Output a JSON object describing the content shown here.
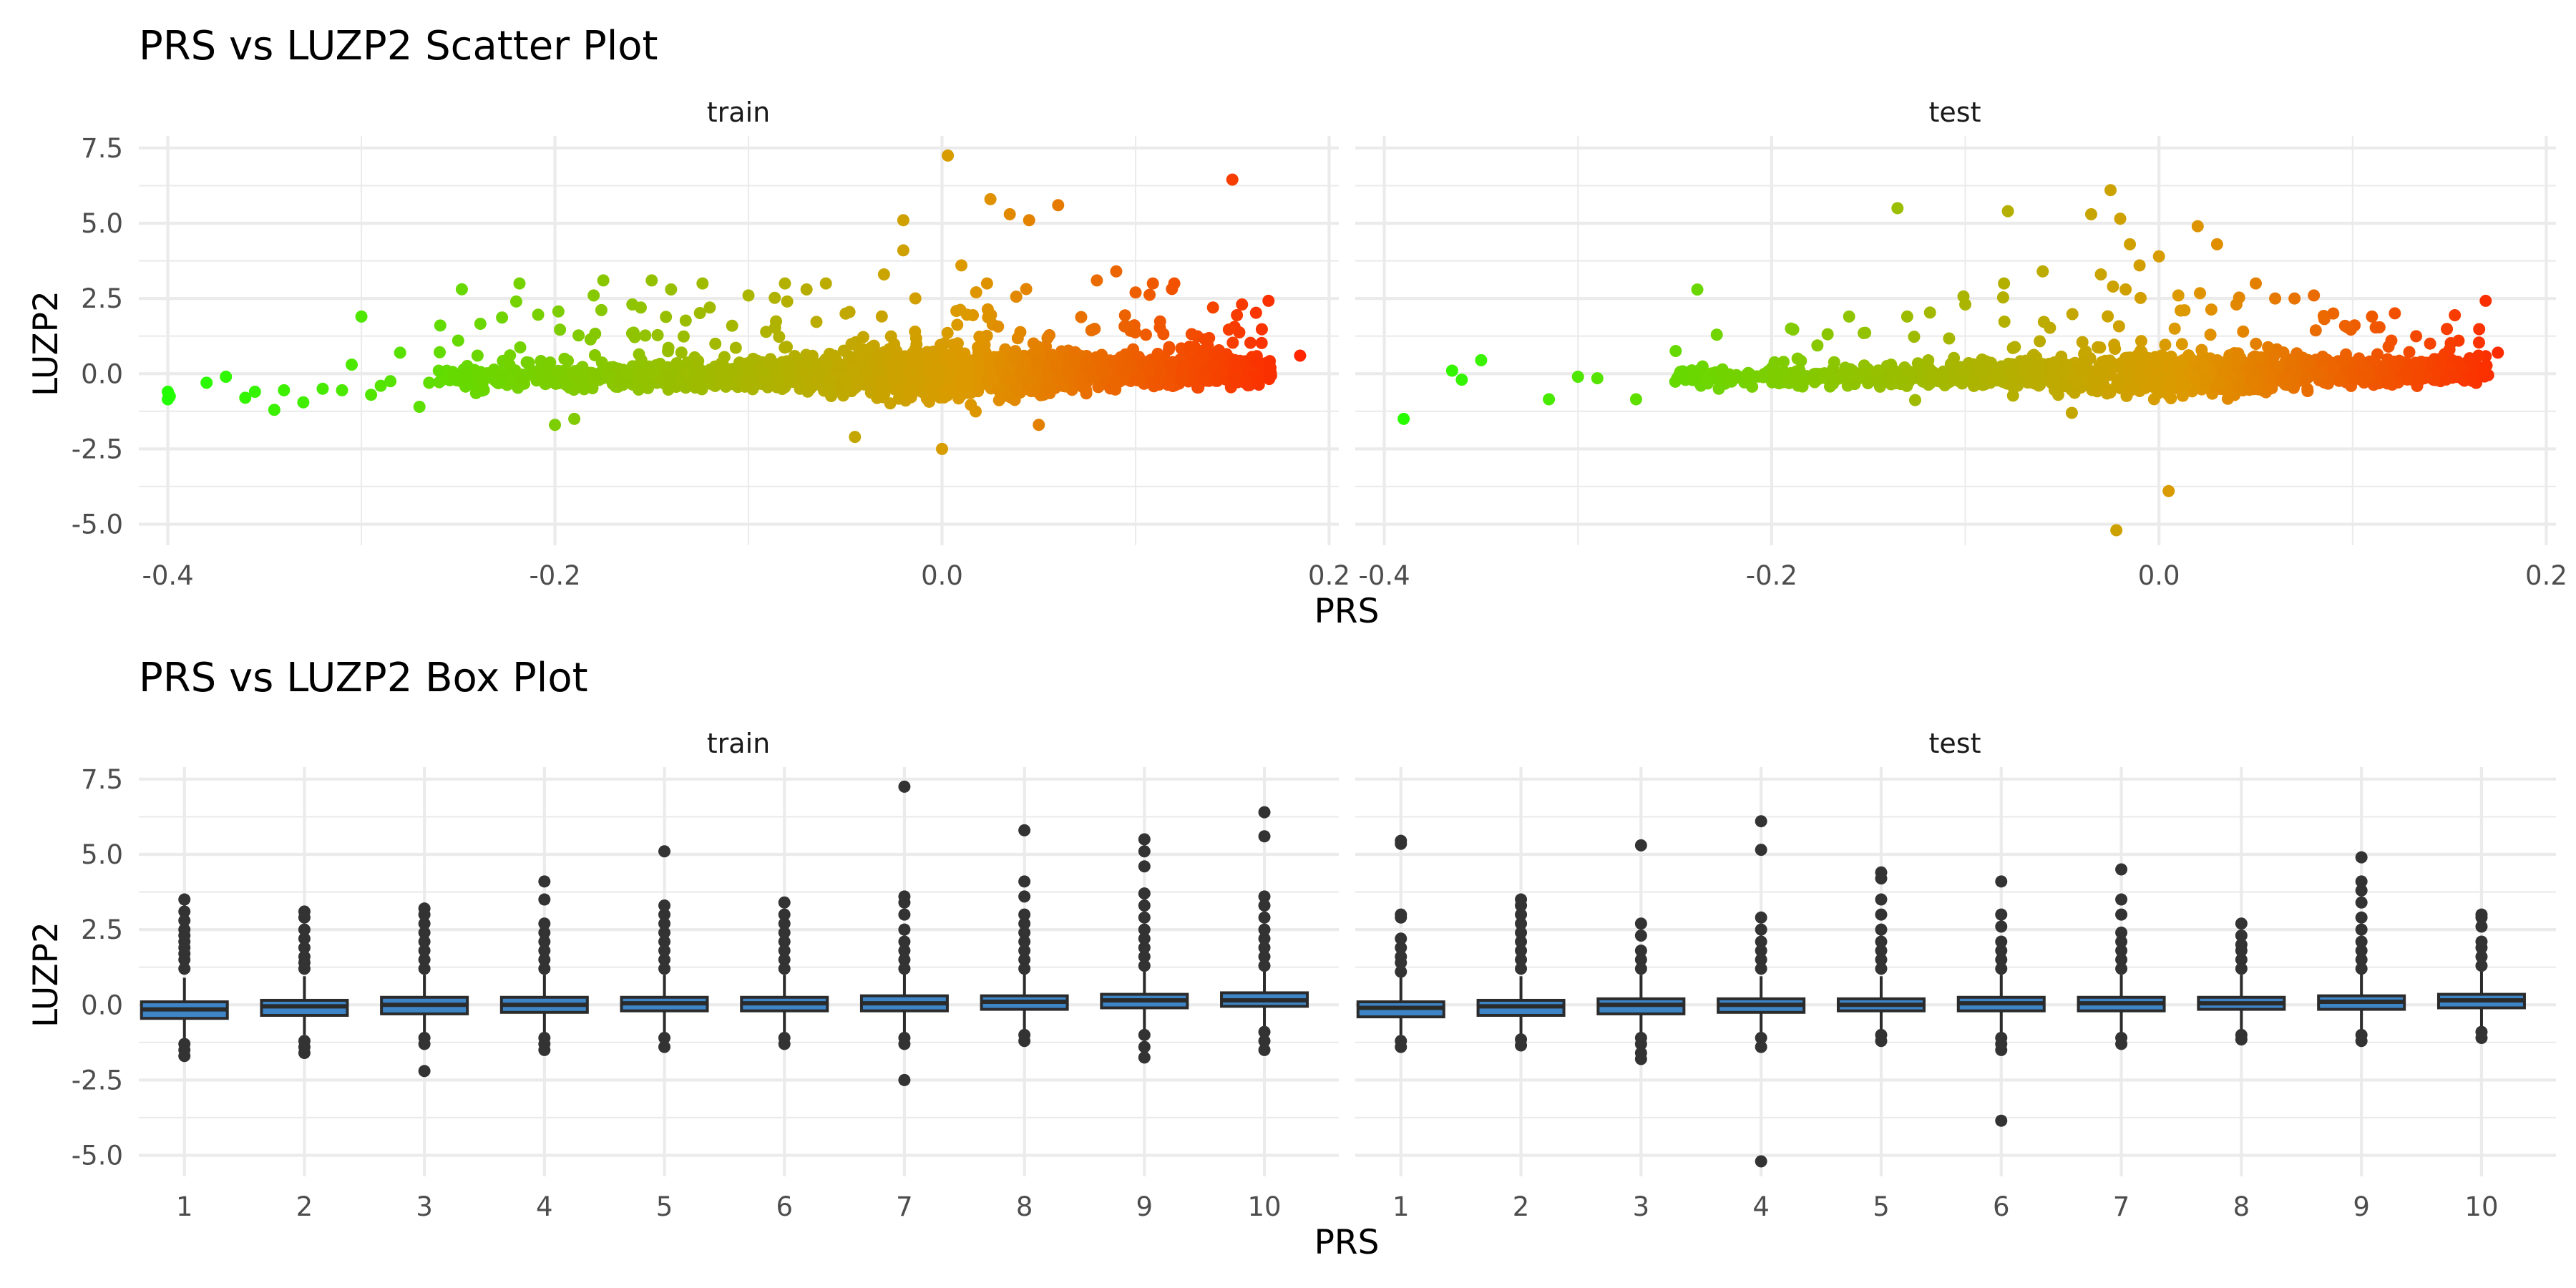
{
  "colors": {
    "low": "#22ff00",
    "mid": "#dd9900",
    "high": "#ff2200",
    "box_fill": "#3d85c6",
    "box_line": "#2b2b2b",
    "outlier": "#333333"
  },
  "chart_data": [
    {
      "type": "scatter",
      "title": "PRS vs LUZP2 Scatter Plot",
      "xlabel": "PRS",
      "ylabel": "LUZP2",
      "xlim": [
        -0.415,
        0.205
      ],
      "ylim": [
        -5.7,
        7.9
      ],
      "xticks": [
        -0.4,
        -0.2,
        0.0,
        0.2
      ],
      "xtick_labels": [
        "-0.4",
        "-0.2",
        "0.0",
        "0.2"
      ],
      "yticks": [
        -5,
        -2.5,
        0,
        2.5,
        5,
        7.5
      ],
      "ytick_labels": [
        "-5.0",
        "-2.5",
        "0.0",
        "2.5",
        "5.0",
        "7.5"
      ],
      "color_scale": "gradient by PRS (green to orange to red)",
      "grid": true,
      "legend": "none",
      "panels": [
        {
          "label": "train",
          "bulk": {
            "x_range": [
              -0.26,
              0.17
            ],
            "y_spread": 0.55,
            "approx_points": 2600
          },
          "points": [
            [
              -0.4,
              -0.6
            ],
            [
              -0.4,
              -0.85
            ],
            [
              -0.399,
              -0.75
            ],
            [
              -0.38,
              -0.3
            ],
            [
              -0.37,
              -0.1
            ],
            [
              -0.36,
              -0.8
            ],
            [
              -0.355,
              -0.6
            ],
            [
              -0.345,
              -1.2
            ],
            [
              -0.34,
              -0.55
            ],
            [
              -0.33,
              -0.95
            ],
            [
              -0.32,
              -0.5
            ],
            [
              -0.31,
              -0.55
            ],
            [
              -0.305,
              0.3
            ],
            [
              -0.3,
              1.9
            ],
            [
              -0.295,
              -0.7
            ],
            [
              -0.29,
              -0.4
            ],
            [
              -0.285,
              -0.25
            ],
            [
              -0.28,
              0.7
            ],
            [
              -0.27,
              -1.1
            ],
            [
              -0.265,
              -0.3
            ],
            [
              -0.26,
              0.1
            ],
            [
              -0.25,
              1.1
            ],
            [
              -0.24,
              0.6
            ],
            [
              -0.22,
              2.4
            ],
            [
              -0.2,
              -1.7
            ],
            [
              -0.19,
              -1.5
            ],
            [
              -0.18,
              2.6
            ],
            [
              -0.175,
              3.1
            ],
            [
              -0.16,
              2.3
            ],
            [
              -0.15,
              3.1
            ],
            [
              -0.14,
              2.8
            ],
            [
              -0.12,
              2.2
            ],
            [
              -0.1,
              2.6
            ],
            [
              -0.08,
              2.4
            ],
            [
              -0.07,
              2.8
            ],
            [
              -0.06,
              3.0
            ],
            [
              -0.045,
              -2.1
            ],
            [
              -0.03,
              3.3
            ],
            [
              -0.02,
              4.1
            ],
            [
              -0.02,
              5.1
            ],
            [
              0.0,
              -2.5
            ],
            [
              0.003,
              7.25
            ],
            [
              0.01,
              3.6
            ],
            [
              0.025,
              5.8
            ],
            [
              0.035,
              5.3
            ],
            [
              0.045,
              5.1
            ],
            [
              0.05,
              -1.7
            ],
            [
              0.06,
              5.6
            ],
            [
              0.08,
              3.1
            ],
            [
              0.09,
              3.4
            ],
            [
              0.1,
              2.7
            ],
            [
              0.12,
              3.0
            ],
            [
              0.14,
              2.2
            ],
            [
              0.15,
              6.45
            ],
            [
              0.155,
              2.3
            ],
            [
              0.185,
              0.6
            ]
          ]
        },
        {
          "label": "test",
          "bulk": {
            "x_range": [
              -0.25,
              0.17
            ],
            "y_spread": 0.5,
            "approx_points": 1500
          },
          "points": [
            [
              -0.39,
              -1.5
            ],
            [
              -0.36,
              -0.2
            ],
            [
              -0.365,
              0.1
            ],
            [
              -0.35,
              0.45
            ],
            [
              -0.315,
              -0.85
            ],
            [
              -0.3,
              -0.1
            ],
            [
              -0.29,
              -0.15
            ],
            [
              -0.27,
              -0.85
            ],
            [
              -0.19,
              1.5
            ],
            [
              -0.16,
              1.9
            ],
            [
              -0.135,
              5.5
            ],
            [
              -0.13,
              1.9
            ],
            [
              -0.1,
              2.3
            ],
            [
              -0.08,
              3.0
            ],
            [
              -0.078,
              5.4
            ],
            [
              -0.06,
              3.4
            ],
            [
              -0.045,
              -1.3
            ],
            [
              -0.035,
              5.3
            ],
            [
              -0.03,
              3.3
            ],
            [
              -0.025,
              6.1
            ],
            [
              -0.02,
              5.15
            ],
            [
              -0.015,
              4.3
            ],
            [
              -0.01,
              3.6
            ],
            [
              0.0,
              3.9
            ],
            [
              0.005,
              -3.9
            ],
            [
              0.01,
              2.6
            ],
            [
              0.02,
              4.9
            ],
            [
              0.03,
              4.3
            ],
            [
              0.04,
              2.3
            ],
            [
              0.05,
              3.0
            ],
            [
              0.06,
              2.5
            ],
            [
              0.07,
              2.5
            ],
            [
              0.08,
              2.6
            ],
            [
              0.09,
              2.0
            ],
            [
              0.11,
              1.9
            ],
            [
              0.12,
              1.1
            ],
            [
              0.14,
              1.0
            ],
            [
              0.15,
              0.8
            ],
            [
              0.165,
              0.6
            ],
            [
              0.175,
              0.7
            ],
            [
              -0.022,
              -5.2
            ]
          ]
        }
      ]
    },
    {
      "type": "box",
      "title": "PRS vs LUZP2 Box Plot",
      "xlabel": "PRS",
      "ylabel": "LUZP2",
      "categories": [
        "1",
        "2",
        "3",
        "4",
        "5",
        "6",
        "7",
        "8",
        "9",
        "10"
      ],
      "ylim": [
        -5.7,
        7.9
      ],
      "yticks": [
        -5,
        -2.5,
        0,
        2.5,
        5,
        7.5
      ],
      "ytick_labels": [
        "-5.0",
        "-2.5",
        "0.0",
        "2.5",
        "5.0",
        "7.5"
      ],
      "grid": true,
      "legend": "none",
      "panels": [
        {
          "label": "train",
          "boxes": [
            {
              "q1": -0.45,
              "median": -0.15,
              "q3": 0.1,
              "lo": -1.1,
              "hi": 0.9,
              "outliers": [
                1.2,
                1.5,
                1.7,
                1.9,
                2.1,
                2.3,
                2.5,
                2.8,
                3.1,
                3.5,
                -1.3,
                -1.5,
                -1.7
              ]
            },
            {
              "q1": -0.35,
              "median": -0.05,
              "q3": 0.15,
              "lo": -1.0,
              "hi": 0.95,
              "outliers": [
                1.2,
                1.4,
                1.6,
                1.9,
                2.2,
                2.5,
                2.9,
                3.1,
                -1.2,
                -1.4,
                -1.6
              ]
            },
            {
              "q1": -0.3,
              "median": 0.0,
              "q3": 0.25,
              "lo": -1.0,
              "hi": 1.0,
              "outliers": [
                1.2,
                1.5,
                1.8,
                2.1,
                2.4,
                2.7,
                3.0,
                3.2,
                -1.1,
                -1.3,
                -2.2
              ]
            },
            {
              "q1": -0.25,
              "median": 0.0,
              "q3": 0.25,
              "lo": -1.0,
              "hi": 1.0,
              "outliers": [
                1.2,
                1.5,
                1.8,
                2.1,
                2.4,
                2.7,
                3.5,
                4.1,
                -1.1,
                -1.3,
                -1.5
              ]
            },
            {
              "q1": -0.2,
              "median": 0.05,
              "q3": 0.25,
              "lo": -1.0,
              "hi": 1.0,
              "outliers": [
                1.2,
                1.5,
                1.8,
                2.1,
                2.4,
                2.7,
                3.0,
                3.3,
                5.1,
                -1.1,
                -1.4
              ]
            },
            {
              "q1": -0.2,
              "median": 0.05,
              "q3": 0.25,
              "lo": -0.95,
              "hi": 1.0,
              "outliers": [
                1.2,
                1.5,
                1.8,
                2.1,
                2.4,
                2.7,
                3.0,
                3.4,
                -1.1,
                -1.3
              ]
            },
            {
              "q1": -0.2,
              "median": 0.05,
              "q3": 0.3,
              "lo": -1.0,
              "hi": 1.05,
              "outliers": [
                1.2,
                1.5,
                1.8,
                2.1,
                2.5,
                3.0,
                3.4,
                3.6,
                7.25,
                -1.1,
                -1.3,
                -2.5
              ]
            },
            {
              "q1": -0.15,
              "median": 0.1,
              "q3": 0.3,
              "lo": -0.9,
              "hi": 1.05,
              "outliers": [
                1.2,
                1.5,
                1.8,
                2.1,
                2.4,
                2.7,
                3.0,
                3.6,
                4.1,
                5.8,
                -1.0,
                -1.2
              ]
            },
            {
              "q1": -0.1,
              "median": 0.15,
              "q3": 0.35,
              "lo": -0.85,
              "hi": 1.1,
              "outliers": [
                1.3,
                1.6,
                1.9,
                2.2,
                2.5,
                2.9,
                3.3,
                3.7,
                4.6,
                5.1,
                5.5,
                -1.0,
                -1.4,
                -1.75
              ]
            },
            {
              "q1": -0.05,
              "median": 0.15,
              "q3": 0.4,
              "lo": -0.75,
              "hi": 1.1,
              "outliers": [
                1.3,
                1.6,
                1.9,
                2.2,
                2.5,
                2.9,
                3.3,
                3.6,
                5.6,
                6.4,
                -0.9,
                -1.2,
                -1.5
              ]
            }
          ]
        },
        {
          "label": "test",
          "boxes": [
            {
              "q1": -0.4,
              "median": -0.1,
              "q3": 0.1,
              "lo": -1.0,
              "hi": 0.9,
              "outliers": [
                1.1,
                1.4,
                1.6,
                1.9,
                2.2,
                2.9,
                3.0,
                5.35,
                5.45,
                -1.2,
                -1.4
              ]
            },
            {
              "q1": -0.35,
              "median": -0.05,
              "q3": 0.15,
              "lo": -1.0,
              "hi": 0.95,
              "outliers": [
                1.2,
                1.5,
                1.8,
                2.1,
                2.4,
                2.7,
                3.0,
                3.3,
                3.5,
                -1.15,
                -1.35
              ]
            },
            {
              "q1": -0.3,
              "median": 0.0,
              "q3": 0.2,
              "lo": -1.0,
              "hi": 1.0,
              "outliers": [
                1.2,
                1.5,
                1.8,
                2.3,
                2.7,
                5.3,
                -1.1,
                -1.3,
                -1.6,
                -1.8
              ]
            },
            {
              "q1": -0.25,
              "median": 0.0,
              "q3": 0.2,
              "lo": -0.95,
              "hi": 0.95,
              "outliers": [
                1.2,
                1.5,
                1.8,
                2.1,
                2.5,
                2.9,
                5.15,
                6.1,
                -1.1,
                -1.4,
                -5.2
              ]
            },
            {
              "q1": -0.2,
              "median": 0.0,
              "q3": 0.2,
              "lo": -0.9,
              "hi": 0.95,
              "outliers": [
                1.2,
                1.5,
                1.8,
                2.1,
                2.5,
                3.0,
                3.5,
                4.2,
                4.4,
                -1.0,
                -1.2
              ]
            },
            {
              "q1": -0.2,
              "median": 0.05,
              "q3": 0.25,
              "lo": -0.95,
              "hi": 1.0,
              "outliers": [
                1.2,
                1.5,
                1.8,
                2.1,
                2.6,
                3.0,
                4.1,
                -1.1,
                -1.3,
                -1.5,
                -3.85
              ]
            },
            {
              "q1": -0.2,
              "median": 0.05,
              "q3": 0.25,
              "lo": -0.95,
              "hi": 1.0,
              "outliers": [
                1.2,
                1.5,
                1.8,
                2.1,
                2.4,
                3.0,
                3.5,
                4.5,
                -1.1,
                -1.3
              ]
            },
            {
              "q1": -0.15,
              "median": 0.05,
              "q3": 0.25,
              "lo": -0.85,
              "hi": 1.0,
              "outliers": [
                1.2,
                1.5,
                1.8,
                2.0,
                2.3,
                2.7,
                -1.0,
                -1.15
              ]
            },
            {
              "q1": -0.15,
              "median": 0.1,
              "q3": 0.3,
              "lo": -0.85,
              "hi": 1.05,
              "outliers": [
                1.2,
                1.5,
                1.8,
                2.1,
                2.5,
                2.9,
                3.4,
                3.8,
                4.1,
                4.9,
                -1.0,
                -1.2
              ]
            },
            {
              "q1": -0.1,
              "median": 0.15,
              "q3": 0.35,
              "lo": -0.8,
              "hi": 1.1,
              "outliers": [
                1.3,
                1.6,
                1.9,
                2.1,
                2.6,
                2.9,
                3.0,
                -0.9,
                -1.1
              ]
            }
          ]
        }
      ]
    }
  ]
}
